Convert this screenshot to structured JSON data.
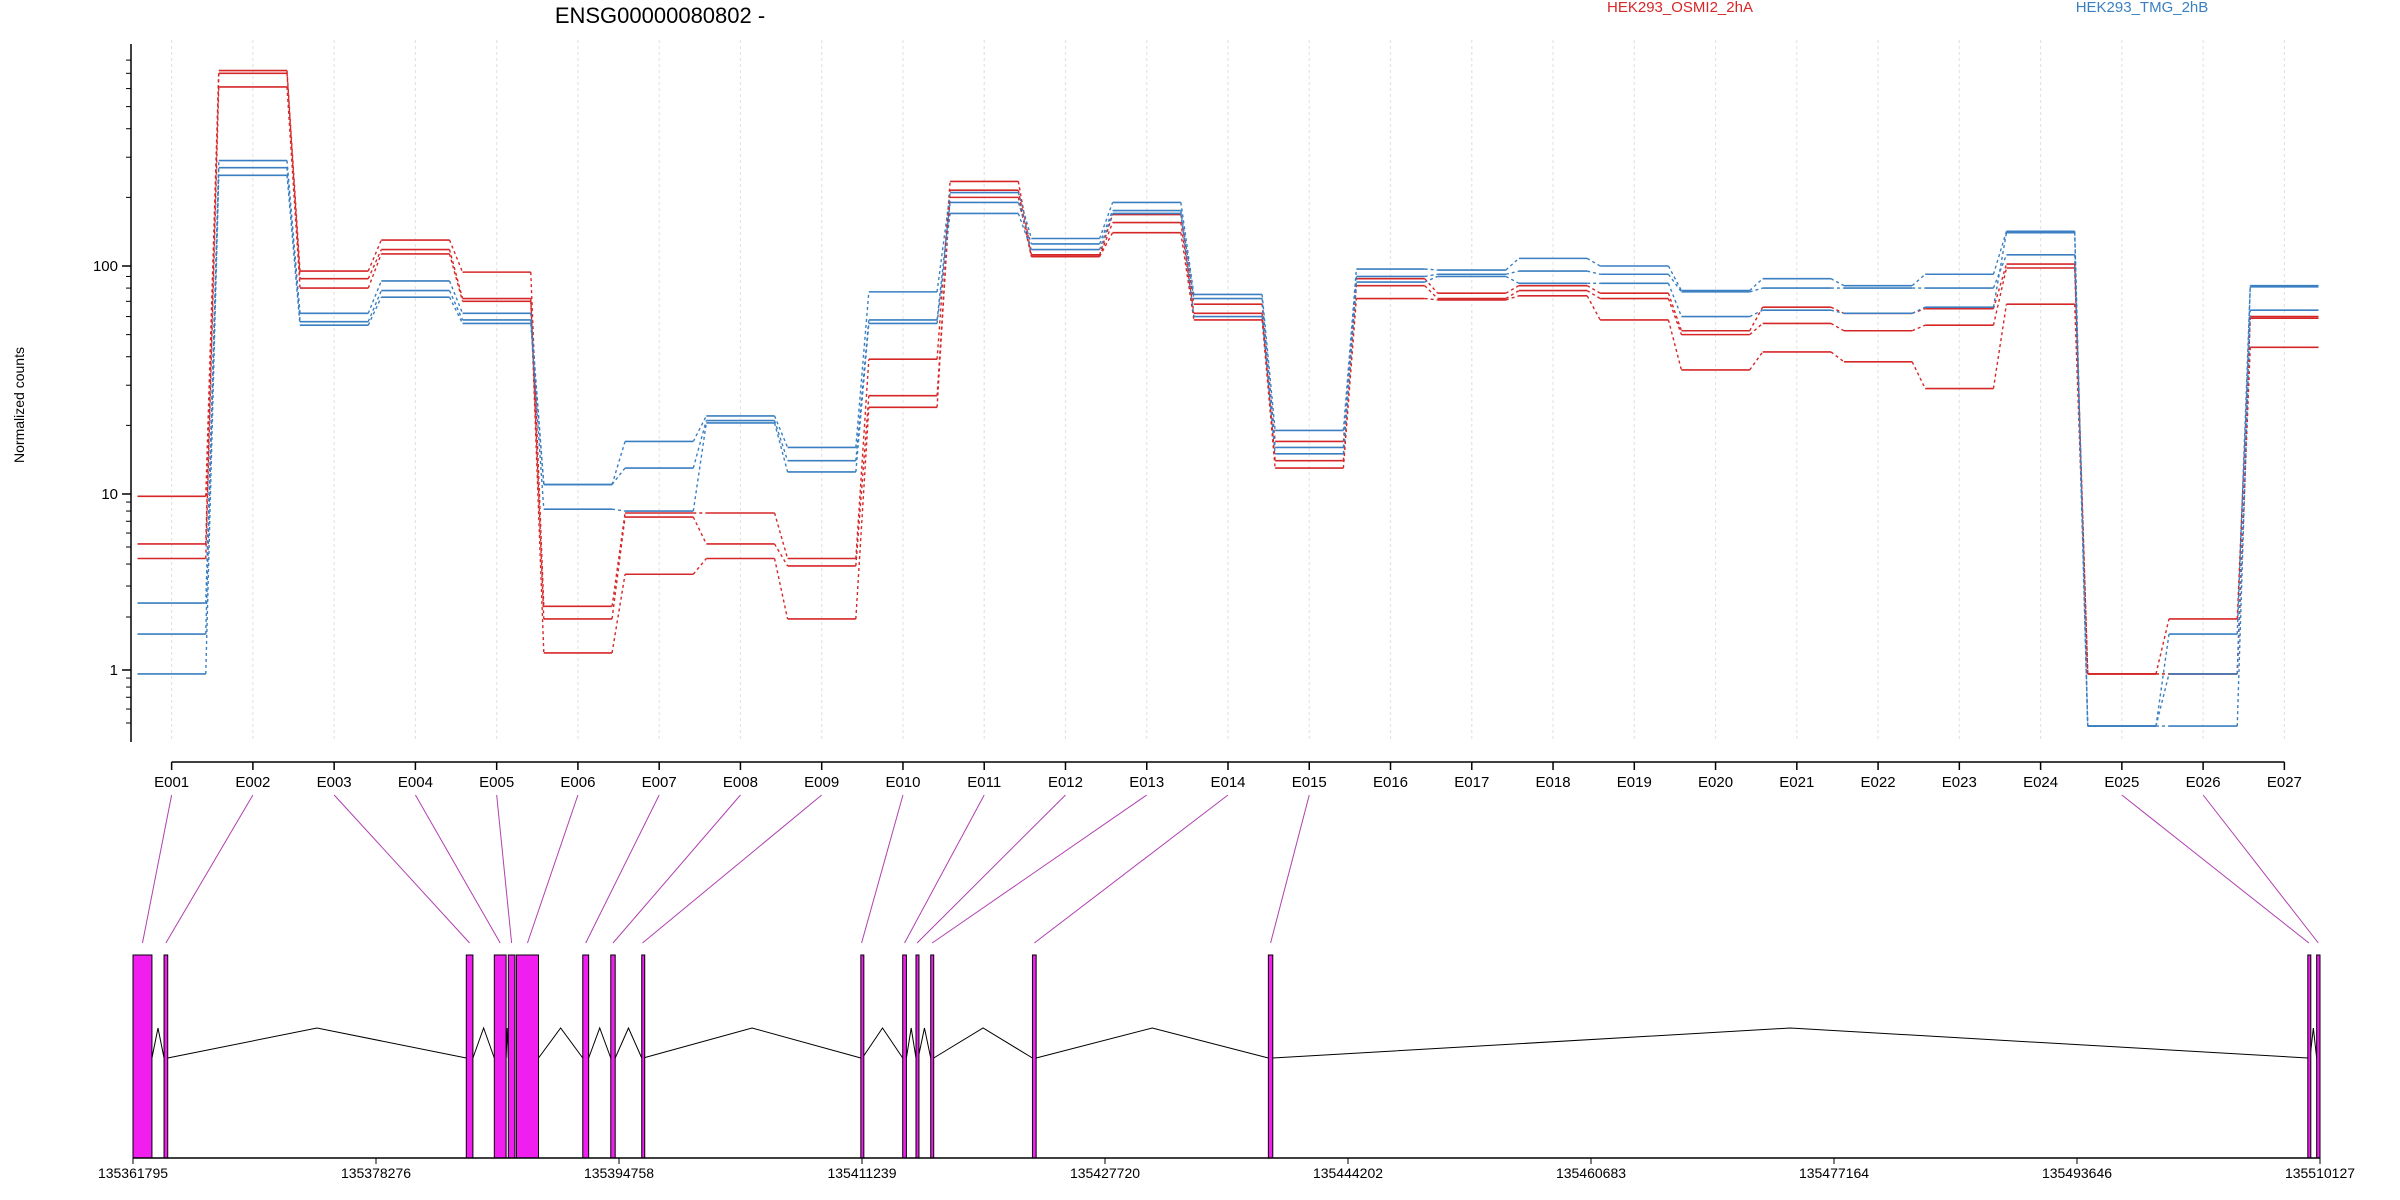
{
  "chart_data": {
    "type": "line",
    "title": "ENSG00000080802 -",
    "ylabel": "Normalized counts",
    "y_scale": "log",
    "y_ticks": [
      1,
      10,
      100
    ],
    "ylim": [
      0.45,
      850
    ],
    "categories": [
      "E001",
      "E002",
      "E003",
      "E004",
      "E005",
      "E006",
      "E007",
      "E008",
      "E009",
      "E010",
      "E011",
      "E012",
      "E013",
      "E014",
      "E015",
      "E016",
      "E017",
      "E018",
      "E019",
      "E020",
      "E021",
      "E022",
      "E023",
      "E024",
      "E025",
      "E026",
      "E027"
    ],
    "grid": "vertical-light",
    "legend": [
      {
        "name": "HEK293_OSMI2_2hA",
        "color": "#d62728",
        "placement": "top-center-right"
      },
      {
        "name": "HEK293_TMG_2hB",
        "color": "#3a7fc1",
        "placement": "top-right"
      }
    ],
    "series": [
      {
        "group": "HEK293_OSMI2_2hA",
        "color": "#d62728",
        "values": [
          9.7,
          720,
          95,
          130,
          94,
          2.3,
          7.8,
          7.8,
          4.3,
          39,
          235,
          112,
          168,
          68,
          17,
          88,
          76,
          82,
          76,
          52,
          66,
          62,
          65,
          102,
          0.95,
          1.95,
          60
        ]
      },
      {
        "group": "HEK293_OSMI2_2hA",
        "color": "#d62728",
        "values": [
          5.2,
          700,
          88,
          118,
          72,
          1.95,
          7.4,
          5.2,
          3.9,
          27,
          200,
          110,
          155,
          62,
          14,
          82,
          72,
          78,
          72,
          50,
          56,
          52,
          55,
          98,
          0.95,
          0.95,
          59
        ]
      },
      {
        "group": "HEK293_OSMI2_2hA",
        "color": "#d62728",
        "values": [
          4.3,
          610,
          80,
          113,
          70,
          1.25,
          3.5,
          4.3,
          1.95,
          24,
          215,
          110,
          140,
          58,
          13,
          72,
          71,
          74,
          58,
          35,
          42,
          38,
          29,
          68,
          0.95,
          0.95,
          44
        ]
      },
      {
        "group": "HEK293_TMG_2hB",
        "color": "#3a7fc1",
        "values": [
          2.4,
          290,
          62,
          86,
          62,
          11,
          17,
          22,
          16,
          77,
          210,
          132,
          190,
          75,
          19,
          97,
          96,
          108,
          100,
          78,
          88,
          82,
          92,
          142,
          0.48,
          1.6,
          82
        ]
      },
      {
        "group": "HEK293_TMG_2hB",
        "color": "#3a7fc1",
        "values": [
          1.6,
          270,
          57,
          78,
          58,
          11,
          13,
          21,
          14,
          58,
          190,
          125,
          175,
          72,
          16,
          90,
          92,
          95,
          92,
          77,
          80,
          80,
          80,
          112,
          0.48,
          0.95,
          81
        ]
      },
      {
        "group": "HEK293_TMG_2hB",
        "color": "#3a7fc1",
        "values": [
          0.95,
          250,
          55,
          73,
          56,
          8.2,
          8.0,
          20.5,
          12.5,
          56,
          170,
          118,
          170,
          60,
          15,
          85,
          90,
          84,
          84,
          60,
          64,
          62,
          66,
          140,
          0.48,
          0.48,
          64
        ]
      }
    ],
    "gene_model": {
      "x_ticks": [
        "135361795",
        "135378276",
        "135394758",
        "135411239",
        "135427720",
        "135444202",
        "135460683",
        "135477164",
        "135493646",
        "135510127"
      ],
      "exon_color": "#f01ff0",
      "exons": [
        {
          "start": 135361795,
          "end": 135363080,
          "label": "E001"
        },
        {
          "start": 135363900,
          "end": 135364150,
          "label": "E002"
        },
        {
          "start": 135384400,
          "end": 135384850,
          "label": "E003"
        },
        {
          "start": 135386300,
          "end": 135387100,
          "label": "E004"
        },
        {
          "start": 135387250,
          "end": 135387700,
          "label": "E005"
        },
        {
          "start": 135387800,
          "end": 135389300,
          "label": "E006"
        },
        {
          "start": 135392300,
          "end": 135392700,
          "label": "E007"
        },
        {
          "start": 135394200,
          "end": 135394500,
          "label": "E008"
        },
        {
          "start": 135396300,
          "end": 135396400,
          "label": "E009"
        },
        {
          "start": 135411160,
          "end": 135411260,
          "label": "E010"
        },
        {
          "start": 135414000,
          "end": 135414250,
          "label": "E011"
        },
        {
          "start": 135414900,
          "end": 135415050,
          "label": "E012"
        },
        {
          "start": 135415900,
          "end": 135416100,
          "label": "E013"
        },
        {
          "start": 135422800,
          "end": 135423050,
          "label": "E014"
        },
        {
          "start": 135438800,
          "end": 135439100,
          "label": "E015"
        },
        {
          "start": 135509300,
          "end": 135509450,
          "label": "E025"
        },
        {
          "start": 135509900,
          "end": 135510127,
          "label": "E026"
        }
      ]
    }
  }
}
